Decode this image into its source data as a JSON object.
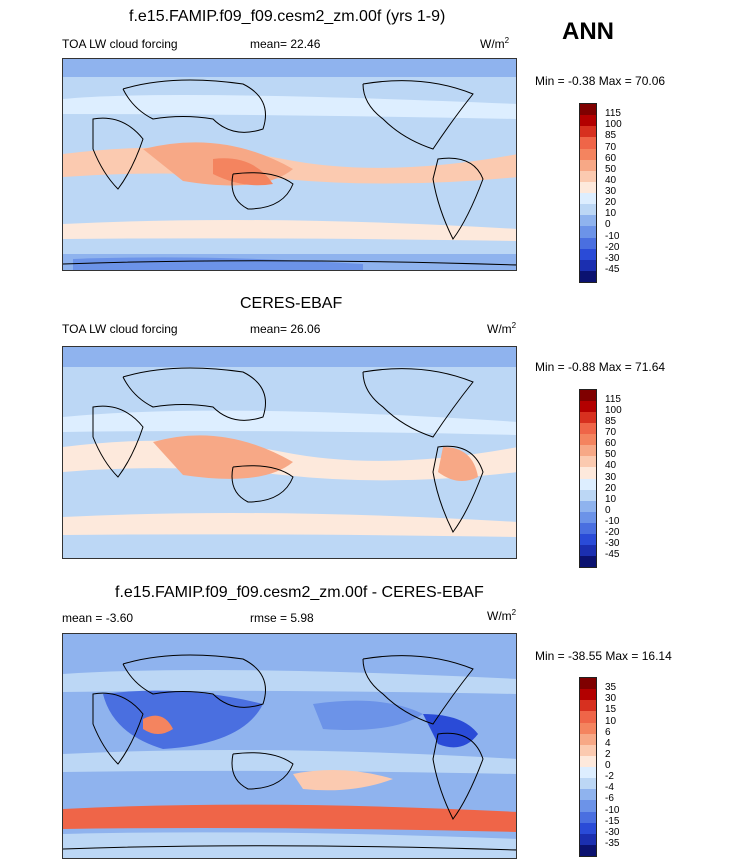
{
  "season": "ANN",
  "panels": [
    {
      "title": "f.e15.FAMIP.f09_f09.cesm2_zm.00f (yrs 1-9)",
      "variable": "TOA LW cloud forcing",
      "stat": "mean=  22.46",
      "units": "W/m",
      "units_sup": "2",
      "minmax": "Min =  -0.38 Max =  70.06",
      "levels": [
        "115",
        "100",
        "85",
        "70",
        "60",
        "50",
        "40",
        "30",
        "20",
        "10",
        "0",
        "-10",
        "-20",
        "-30",
        "-45"
      ],
      "colors": [
        "#7f0000",
        "#b30000",
        "#d7301f",
        "#ef6548",
        "#f4845f",
        "#f7a886",
        "#fbcab0",
        "#fde9dc",
        "#ddeeff",
        "#bcd7f5",
        "#8fb3ee",
        "#6c93e8",
        "#4a6fe0",
        "#2a4bd7",
        "#1b2fb0",
        "#0b1270"
      ]
    },
    {
      "title": "CERES-EBAF",
      "variable": "TOA LW cloud forcing",
      "stat": "mean=  26.06",
      "units": "W/m",
      "units_sup": "2",
      "minmax": "Min =  -0.88 Max =  71.64",
      "levels": [
        "115",
        "100",
        "85",
        "70",
        "60",
        "50",
        "40",
        "30",
        "20",
        "10",
        "0",
        "-10",
        "-20",
        "-30",
        "-45"
      ],
      "colors": [
        "#7f0000",
        "#b30000",
        "#d7301f",
        "#ef6548",
        "#f4845f",
        "#f7a886",
        "#fbcab0",
        "#fde9dc",
        "#ddeeff",
        "#bcd7f5",
        "#8fb3ee",
        "#6c93e8",
        "#4a6fe0",
        "#2a4bd7",
        "#1b2fb0",
        "#0b1270"
      ]
    },
    {
      "title": "f.e15.FAMIP.f09_f09.cesm2_zm.00f - CERES-EBAF",
      "variable": "mean =  -3.60",
      "stat": "rmse =   5.98",
      "units": "W/m",
      "units_sup": "2",
      "minmax": "Min = -38.55 Max =  16.14",
      "levels": [
        "35",
        "30",
        "15",
        "10",
        "6",
        "4",
        "2",
        "0",
        "-2",
        "-4",
        "-6",
        "-10",
        "-15",
        "-30",
        "-35"
      ],
      "colors": [
        "#7f0000",
        "#b30000",
        "#d7301f",
        "#ef6548",
        "#f4845f",
        "#f7a886",
        "#fbcab0",
        "#fde9dc",
        "#ddeeff",
        "#bcd7f5",
        "#8fb3ee",
        "#6c93e8",
        "#4a6fe0",
        "#2a4bd7",
        "#1b2fb0",
        "#0b1270"
      ]
    }
  ]
}
